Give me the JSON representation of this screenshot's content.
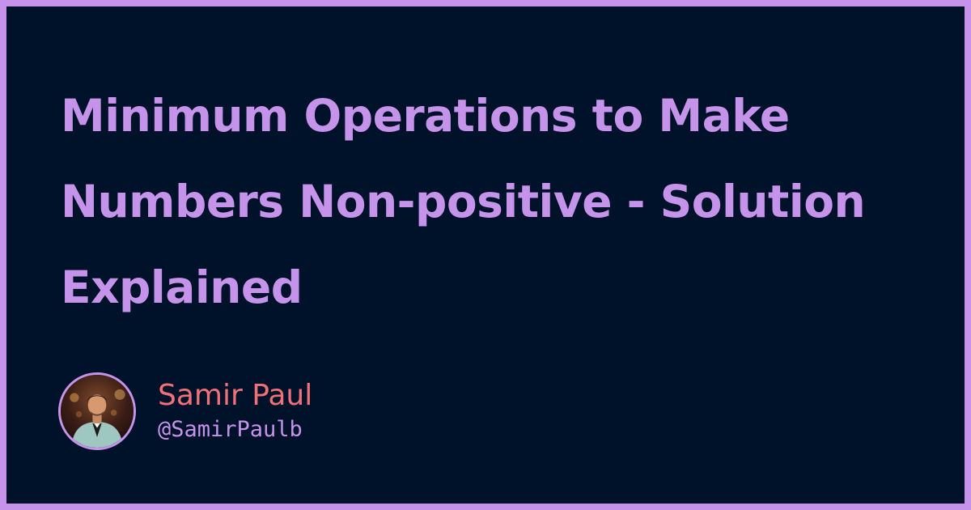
{
  "title": "Minimum Operations to Make Numbers Non-positive - Solution Explained",
  "author": {
    "name": "Samir Paul",
    "handle": "@SamirPaulb",
    "avatar_icon": "avatar-photo"
  },
  "colors": {
    "frame": "#c594ea",
    "background": "#00122a",
    "title": "#c594ea",
    "name": "#f07178",
    "handle": "#c594ea"
  }
}
